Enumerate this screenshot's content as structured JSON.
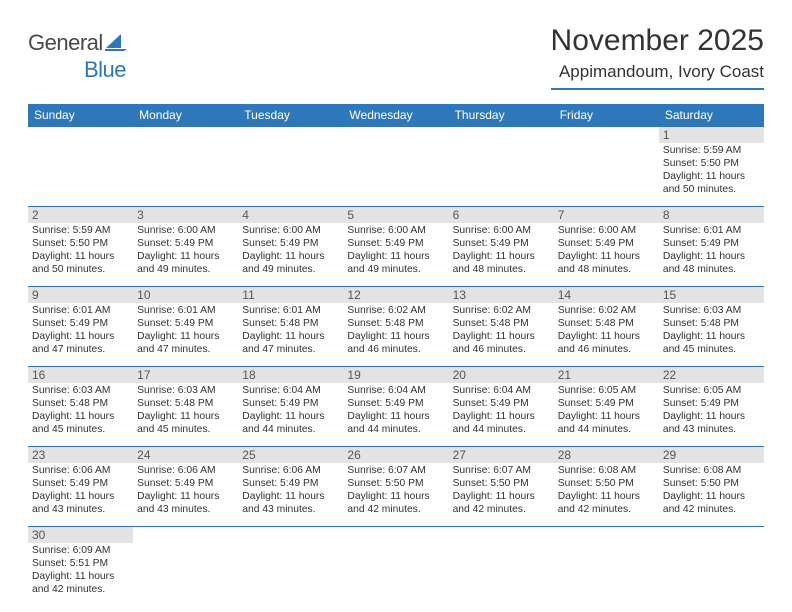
{
  "logo": {
    "text_part1": "General",
    "text_part2": "Blue",
    "text1_color": "#4a4a4a",
    "text2_color": "#2f77bb",
    "sail_color": "#2f77bb"
  },
  "header": {
    "title": "November 2025",
    "location": "Appimandoum, Ivory Coast",
    "title_color": "#333333",
    "accent_color": "#2f77bb"
  },
  "calendar": {
    "header_bg": "#2f77bb",
    "header_text_color": "#ffffff",
    "daynum_bg": "#e3e3e3",
    "daynum_color": "#555555",
    "cell_border_color": "#2f77bb",
    "detail_text_color": "#333333",
    "columns": [
      "Sunday",
      "Monday",
      "Tuesday",
      "Wednesday",
      "Thursday",
      "Friday",
      "Saturday"
    ],
    "weeks": [
      [
        null,
        null,
        null,
        null,
        null,
        null,
        {
          "n": "1",
          "sr": "5:59 AM",
          "ss": "5:50 PM",
          "dl": "11 hours and 50 minutes."
        }
      ],
      [
        {
          "n": "2",
          "sr": "5:59 AM",
          "ss": "5:50 PM",
          "dl": "11 hours and 50 minutes."
        },
        {
          "n": "3",
          "sr": "6:00 AM",
          "ss": "5:49 PM",
          "dl": "11 hours and 49 minutes."
        },
        {
          "n": "4",
          "sr": "6:00 AM",
          "ss": "5:49 PM",
          "dl": "11 hours and 49 minutes."
        },
        {
          "n": "5",
          "sr": "6:00 AM",
          "ss": "5:49 PM",
          "dl": "11 hours and 49 minutes."
        },
        {
          "n": "6",
          "sr": "6:00 AM",
          "ss": "5:49 PM",
          "dl": "11 hours and 48 minutes."
        },
        {
          "n": "7",
          "sr": "6:00 AM",
          "ss": "5:49 PM",
          "dl": "11 hours and 48 minutes."
        },
        {
          "n": "8",
          "sr": "6:01 AM",
          "ss": "5:49 PM",
          "dl": "11 hours and 48 minutes."
        }
      ],
      [
        {
          "n": "9",
          "sr": "6:01 AM",
          "ss": "5:49 PM",
          "dl": "11 hours and 47 minutes."
        },
        {
          "n": "10",
          "sr": "6:01 AM",
          "ss": "5:49 PM",
          "dl": "11 hours and 47 minutes."
        },
        {
          "n": "11",
          "sr": "6:01 AM",
          "ss": "5:48 PM",
          "dl": "11 hours and 47 minutes."
        },
        {
          "n": "12",
          "sr": "6:02 AM",
          "ss": "5:48 PM",
          "dl": "11 hours and 46 minutes."
        },
        {
          "n": "13",
          "sr": "6:02 AM",
          "ss": "5:48 PM",
          "dl": "11 hours and 46 minutes."
        },
        {
          "n": "14",
          "sr": "6:02 AM",
          "ss": "5:48 PM",
          "dl": "11 hours and 46 minutes."
        },
        {
          "n": "15",
          "sr": "6:03 AM",
          "ss": "5:48 PM",
          "dl": "11 hours and 45 minutes."
        }
      ],
      [
        {
          "n": "16",
          "sr": "6:03 AM",
          "ss": "5:48 PM",
          "dl": "11 hours and 45 minutes."
        },
        {
          "n": "17",
          "sr": "6:03 AM",
          "ss": "5:48 PM",
          "dl": "11 hours and 45 minutes."
        },
        {
          "n": "18",
          "sr": "6:04 AM",
          "ss": "5:49 PM",
          "dl": "11 hours and 44 minutes."
        },
        {
          "n": "19",
          "sr": "6:04 AM",
          "ss": "5:49 PM",
          "dl": "11 hours and 44 minutes."
        },
        {
          "n": "20",
          "sr": "6:04 AM",
          "ss": "5:49 PM",
          "dl": "11 hours and 44 minutes."
        },
        {
          "n": "21",
          "sr": "6:05 AM",
          "ss": "5:49 PM",
          "dl": "11 hours and 44 minutes."
        },
        {
          "n": "22",
          "sr": "6:05 AM",
          "ss": "5:49 PM",
          "dl": "11 hours and 43 minutes."
        }
      ],
      [
        {
          "n": "23",
          "sr": "6:06 AM",
          "ss": "5:49 PM",
          "dl": "11 hours and 43 minutes."
        },
        {
          "n": "24",
          "sr": "6:06 AM",
          "ss": "5:49 PM",
          "dl": "11 hours and 43 minutes."
        },
        {
          "n": "25",
          "sr": "6:06 AM",
          "ss": "5:49 PM",
          "dl": "11 hours and 43 minutes."
        },
        {
          "n": "26",
          "sr": "6:07 AM",
          "ss": "5:50 PM",
          "dl": "11 hours and 42 minutes."
        },
        {
          "n": "27",
          "sr": "6:07 AM",
          "ss": "5:50 PM",
          "dl": "11 hours and 42 minutes."
        },
        {
          "n": "28",
          "sr": "6:08 AM",
          "ss": "5:50 PM",
          "dl": "11 hours and 42 minutes."
        },
        {
          "n": "29",
          "sr": "6:08 AM",
          "ss": "5:50 PM",
          "dl": "11 hours and 42 minutes."
        }
      ],
      [
        {
          "n": "30",
          "sr": "6:09 AM",
          "ss": "5:51 PM",
          "dl": "11 hours and 42 minutes."
        },
        null,
        null,
        null,
        null,
        null,
        null
      ]
    ],
    "labels": {
      "sunrise": "Sunrise:",
      "sunset": "Sunset:",
      "daylight": "Daylight:"
    }
  }
}
